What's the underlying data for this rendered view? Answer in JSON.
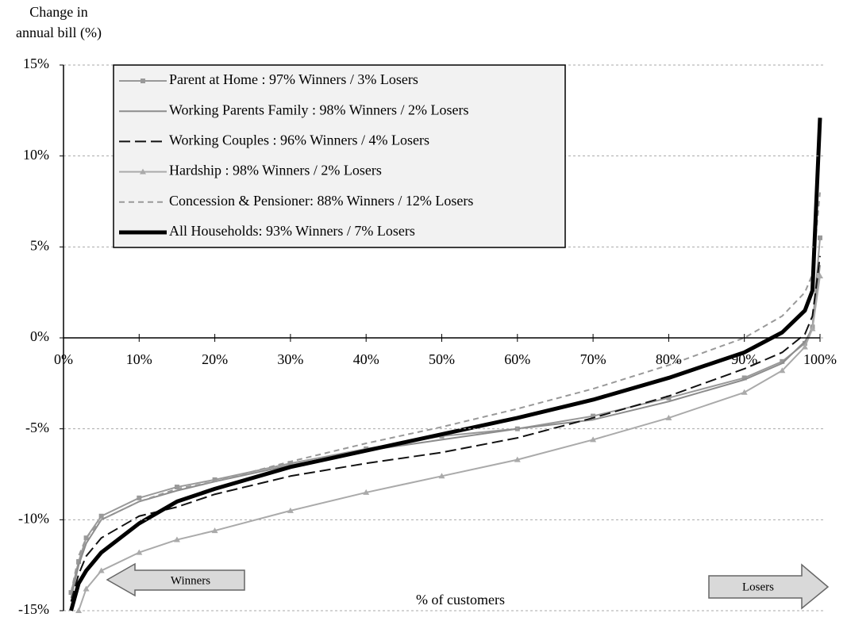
{
  "chart_data": {
    "type": "line",
    "ylabel": [
      "Change in",
      "annual bill (%)"
    ],
    "xlabel": "% of customers",
    "annotations": [
      "Winners",
      "Losers"
    ],
    "x": [
      1,
      2,
      3,
      5,
      10,
      15,
      20,
      30,
      40,
      50,
      60,
      70,
      80,
      90,
      95,
      98,
      99,
      100
    ],
    "xlim": [
      0,
      100
    ],
    "ylim": [
      -15,
      15
    ],
    "xticks": [
      {
        "value": 0,
        "label": "0%"
      },
      {
        "value": 10,
        "label": "10%"
      },
      {
        "value": 20,
        "label": "20%"
      },
      {
        "value": 30,
        "label": "30%"
      },
      {
        "value": 40,
        "label": "40%"
      },
      {
        "value": 50,
        "label": "50%"
      },
      {
        "value": 60,
        "label": "60%"
      },
      {
        "value": 70,
        "label": "70%"
      },
      {
        "value": 80,
        "label": "80%"
      },
      {
        "value": 90,
        "label": "90%"
      },
      {
        "value": 100,
        "label": "100%"
      }
    ],
    "yticks": [
      {
        "value": -15,
        "label": "-15%"
      },
      {
        "value": -10,
        "label": "-10%"
      },
      {
        "value": -5,
        "label": "-5%"
      },
      {
        "value": 0,
        "label": "0%"
      },
      {
        "value": 5,
        "label": "5%"
      },
      {
        "value": 10,
        "label": "10%"
      },
      {
        "value": 15,
        "label": "15%"
      }
    ],
    "grid": true,
    "legend": "upper left",
    "series": [
      {
        "name": "Parent at Home : 97% Winners / 3% Losers",
        "color": "#999999",
        "width": 2,
        "dash": "none",
        "marker": "square",
        "values": [
          -14,
          -12.3,
          -11,
          -9.8,
          -8.8,
          -8.2,
          -7.8,
          -6.9,
          -6.1,
          -5.4,
          -5,
          -4.3,
          -3.3,
          -2.2,
          -1.3,
          -0.3,
          0.6,
          5.5
        ]
      },
      {
        "name": "Working Parents Family : 98% Winners / 2% Losers",
        "color": "#8c8c8c",
        "width": 2,
        "dash": "none",
        "marker": "none",
        "values": [
          -14.3,
          -12.5,
          -11.3,
          -10,
          -9,
          -8.4,
          -7.9,
          -7,
          -6.2,
          -5.6,
          -5,
          -4.5,
          -3.5,
          -2.3,
          -1.4,
          -0.2,
          0.5,
          4
        ]
      },
      {
        "name": "Working Couples : 96% Winners / 4% Losers",
        "color": "#111111",
        "width": 2,
        "dash": "14 6",
        "marker": "none",
        "values": [
          -14.5,
          -13,
          -12,
          -11,
          -9.8,
          -9.3,
          -8.6,
          -7.6,
          -6.9,
          -6.3,
          -5.5,
          -4.4,
          -3.2,
          -1.7,
          -0.8,
          0.2,
          1.2,
          4.5
        ]
      },
      {
        "name": "Hardship : 98% Winners / 2% Losers",
        "color": "#aaaaaa",
        "width": 2,
        "dash": "none",
        "marker": "triangle",
        "values": [
          null,
          -15,
          -13.8,
          -12.8,
          -11.8,
          -11.1,
          -10.6,
          -9.5,
          -8.5,
          -7.6,
          -6.7,
          -5.6,
          -4.4,
          -3,
          -1.8,
          -0.5,
          0.5,
          3.4
        ]
      },
      {
        "name": "Concession & Pensioner: 88% Winners / 12% Losers",
        "color": "#999999",
        "width": 2,
        "dash": "7 5",
        "marker": "none",
        "values": [
          -14,
          -12,
          -11,
          -10,
          -9,
          -8.3,
          -7.9,
          -6.8,
          -5.8,
          -4.9,
          -3.9,
          -2.8,
          -1.5,
          0,
          1.2,
          2.5,
          3.5,
          8
        ]
      },
      {
        "name": "All Households: 93% Winners / 7% Losers",
        "color": "#000000",
        "width": 5,
        "dash": "none",
        "marker": "none",
        "values": [
          -15,
          -13.5,
          -12.8,
          -11.8,
          -10.2,
          -9,
          -8.3,
          -7.1,
          -6.2,
          -5.3,
          -4.4,
          -3.4,
          -2.2,
          -0.8,
          0.3,
          1.5,
          2.6,
          12.1
        ]
      }
    ]
  }
}
